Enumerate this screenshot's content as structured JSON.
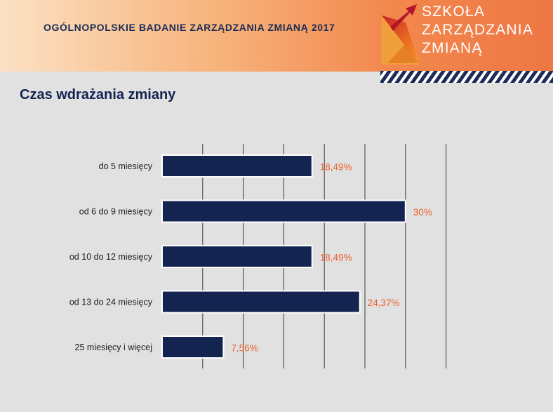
{
  "header": {
    "title": "OGÓLNOPOLSKIE BADANIE ZARZĄDZANIA ZMIANĄ 2017",
    "logo_lines": [
      "SZKOŁA",
      "ZARZĄDZANIA",
      "ZMIANĄ"
    ],
    "logo_icon": "rising-arrow-triangle-icon"
  },
  "colors": {
    "bar": "#12244f",
    "bar_outline": "#ffffff",
    "value_label": "#ec5f2d",
    "grid": "#3c3c3c",
    "title": "#12244f"
  },
  "chart_data": {
    "type": "bar",
    "orientation": "horizontal",
    "title": "Czas wdrażania zmiany",
    "categories": [
      "do 5 miesięcy",
      "od 6 do 9 miesięcy",
      "od 10 do 12 miesięcy",
      "od 13 do 24 miesięcy",
      "25 miesięcy i więcej"
    ],
    "values": [
      18.49,
      30,
      18.49,
      24.37,
      7.56
    ],
    "value_labels": [
      "18,49%",
      "30%",
      "18,49%",
      "24,37%",
      "7,56%"
    ],
    "xlim": [
      0,
      35
    ],
    "grid_step": 5,
    "grid": true,
    "legend": "none"
  }
}
